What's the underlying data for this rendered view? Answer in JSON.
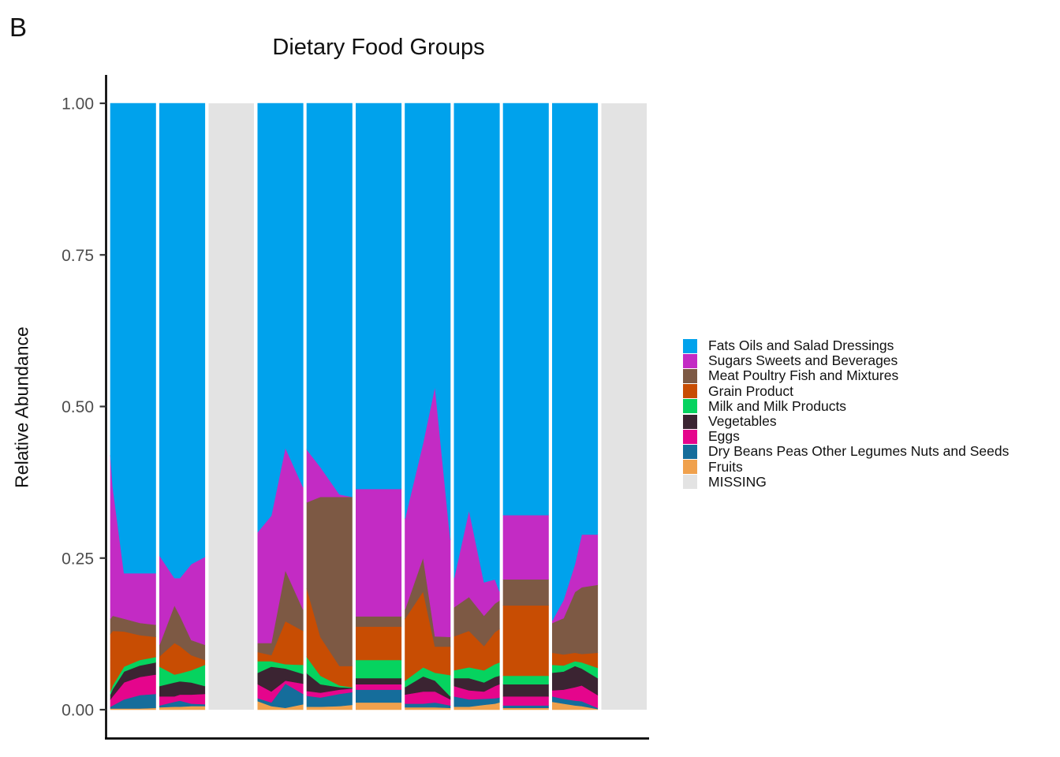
{
  "panel_tag": "B",
  "chart_data": {
    "type": "area",
    "title": "Dietary Food Groups",
    "y_axis": {
      "label": "Relative Abundance",
      "ticks": [
        {
          "label": "0.00",
          "value": 0.0
        },
        {
          "label": "0.25",
          "value": 0.25
        },
        {
          "label": "0.50",
          "value": 0.5
        },
        {
          "label": "0.75",
          "value": 0.75
        },
        {
          "label": "1.00",
          "value": 1.0
        }
      ],
      "range": [
        0,
        1
      ]
    },
    "x_axis": {
      "label": "",
      "ticks": []
    },
    "legend": [
      {
        "label": "Fats Oils and Salad Dressings",
        "color": "#00A2EC"
      },
      {
        "label": "Sugars Sweets and Beverages",
        "color": "#C32BC4"
      },
      {
        "label": "Meat Poultry Fish and Mixtures",
        "color": "#7D5944"
      },
      {
        "label": "Grain Product",
        "color": "#C84D03"
      },
      {
        "label": "Milk and Milk Products",
        "color": "#06D35F"
      },
      {
        "label": "Vegetables",
        "color": "#3B2432"
      },
      {
        "label": "Eggs",
        "color": "#E5058C"
      },
      {
        "label": "Dry Beans Peas Other Legumes Nuts and Seeds",
        "color": "#156D9B"
      },
      {
        "label": "Fruits",
        "color": "#F0A14D"
      },
      {
        "label": "MISSING",
        "color": "#E3E3E3"
      }
    ],
    "missing_color": "#E3E3E3",
    "stack_series": [
      "Fruits",
      "Dry Beans Peas Other Legumes Nuts and Seeds",
      "Eggs",
      "Vegetables",
      "Milk and Milk Products",
      "Grain Product",
      "Meat Poultry Fish and Mixtures",
      "Sugars Sweets and Beverages",
      "Fats Oils and Salad Dressings"
    ],
    "panels": [
      {
        "id": 1,
        "missing": false,
        "points": [
          {
            "x": 0.0,
            "v": [
              0.002,
              0.003,
              0.012,
              0.008,
              0.005,
              0.095,
              0.025,
              0.27,
              0.58
            ]
          },
          {
            "x": 0.05,
            "v": [
              0.002,
              0.005,
              0.015,
              0.012,
              0.006,
              0.09,
              0.025,
              0.213,
              0.632
            ]
          },
          {
            "x": 0.3,
            "v": [
              0.002,
              0.015,
              0.028,
              0.018,
              0.008,
              0.058,
              0.021,
              0.075,
              0.775
            ]
          },
          {
            "x": 0.65,
            "v": [
              0.002,
              0.022,
              0.03,
              0.019,
              0.009,
              0.041,
              0.02,
              0.082,
              0.775
            ]
          },
          {
            "x": 1.0,
            "v": [
              0.003,
              0.023,
              0.032,
              0.02,
              0.009,
              0.033,
              0.02,
              0.085,
              0.775
            ]
          }
        ]
      },
      {
        "id": 2,
        "missing": false,
        "points": [
          {
            "x": 0.0,
            "v": [
              0.004,
              0.003,
              0.015,
              0.017,
              0.032,
              0.017,
              0.019,
              0.147,
              0.746
            ]
          },
          {
            "x": 0.33,
            "v": [
              0.005,
              0.008,
              0.009,
              0.023,
              0.013,
              0.052,
              0.062,
              0.045,
              0.783
            ]
          },
          {
            "x": 0.45,
            "v": [
              0.005,
              0.01,
              0.01,
              0.022,
              0.013,
              0.045,
              0.05,
              0.062,
              0.783
            ]
          },
          {
            "x": 0.7,
            "v": [
              0.006,
              0.004,
              0.015,
              0.02,
              0.02,
              0.025,
              0.025,
              0.125,
              0.76
            ]
          },
          {
            "x": 1.0,
            "v": [
              0.006,
              0.003,
              0.017,
              0.013,
              0.035,
              0.008,
              0.025,
              0.145,
              0.748
            ]
          }
        ]
      },
      {
        "id": 3,
        "missing": true,
        "points": []
      },
      {
        "id": 4,
        "missing": false,
        "points": [
          {
            "x": 0.0,
            "v": [
              0.014,
              0.005,
              0.023,
              0.019,
              0.019,
              0.015,
              0.015,
              0.183,
              0.707
            ]
          },
          {
            "x": 0.3,
            "v": [
              0.006,
              0.006,
              0.018,
              0.041,
              0.009,
              0.01,
              0.02,
              0.21,
              0.68
            ]
          },
          {
            "x": 0.61,
            "v": [
              0.003,
              0.04,
              0.005,
              0.02,
              0.007,
              0.071,
              0.084,
              0.202,
              0.568
            ]
          },
          {
            "x": 1.0,
            "v": [
              0.009,
              0.017,
              0.017,
              0.016,
              0.015,
              0.056,
              0.035,
              0.202,
              0.633
            ]
          }
        ]
      },
      {
        "id": 5,
        "missing": false,
        "points": [
          {
            "x": 0.0,
            "v": [
              0.005,
              0.018,
              0.008,
              0.029,
              0.027,
              0.113,
              0.142,
              0.087,
              0.571
            ]
          },
          {
            "x": 0.3,
            "v": [
              0.005,
              0.015,
              0.008,
              0.014,
              0.014,
              0.064,
              0.231,
              0.049,
              0.6
            ]
          },
          {
            "x": 0.72,
            "v": [
              0.006,
              0.02,
              0.007,
              0.004,
              0.003,
              0.032,
              0.279,
              0.004,
              0.645
            ]
          },
          {
            "x": 1.0,
            "v": [
              0.008,
              0.021,
              0.006,
              0.001,
              0.001,
              0.035,
              0.279,
              0.0,
              0.649
            ]
          }
        ]
      },
      {
        "id": 6,
        "missing": false,
        "points": [
          {
            "x": 0.0,
            "v": [
              0.012,
              0.021,
              0.009,
              0.01,
              0.03,
              0.055,
              0.017,
              0.21,
              0.636
            ]
          },
          {
            "x": 1.0,
            "v": [
              0.012,
              0.021,
              0.009,
              0.01,
              0.03,
              0.055,
              0.017,
              0.21,
              0.636
            ]
          }
        ]
      },
      {
        "id": 7,
        "missing": false,
        "points": [
          {
            "x": 0.0,
            "v": [
              0.004,
              0.006,
              0.015,
              0.012,
              0.011,
              0.102,
              0.015,
              0.15,
              0.685
            ]
          },
          {
            "x": 0.4,
            "v": [
              0.004,
              0.006,
              0.02,
              0.025,
              0.015,
              0.125,
              0.056,
              0.189,
              0.56
            ]
          },
          {
            "x": 0.66,
            "v": [
              0.004,
              0.008,
              0.018,
              0.018,
              0.013,
              0.043,
              0.017,
              0.412,
              0.467
            ]
          },
          {
            "x": 1.0,
            "v": [
              0.003,
              0.004,
              0.01,
              0.005,
              0.035,
              0.047,
              0.016,
              0.16,
              0.72
            ]
          }
        ]
      },
      {
        "id": 8,
        "missing": false,
        "points": [
          {
            "x": 0.0,
            "v": [
              0.005,
              0.017,
              0.017,
              0.013,
              0.013,
              0.056,
              0.048,
              0.048,
              0.783
            ]
          },
          {
            "x": 0.33,
            "v": [
              0.005,
              0.012,
              0.015,
              0.02,
              0.018,
              0.06,
              0.056,
              0.143,
              0.671
            ]
          },
          {
            "x": 0.66,
            "v": [
              0.008,
              0.01,
              0.012,
              0.015,
              0.02,
              0.04,
              0.05,
              0.055,
              0.79
            ]
          },
          {
            "x": 0.9,
            "v": [
              0.01,
              0.009,
              0.02,
              0.015,
              0.021,
              0.053,
              0.047,
              0.04,
              0.785
            ]
          },
          {
            "x": 1.0,
            "v": [
              0.012,
              0.008,
              0.022,
              0.014,
              0.022,
              0.055,
              0.047,
              0.015,
              0.805
            ]
          }
        ]
      },
      {
        "id": 9,
        "missing": false,
        "points": [
          {
            "x": 0.0,
            "v": [
              0.003,
              0.004,
              0.015,
              0.02,
              0.014,
              0.116,
              0.043,
              0.106,
              0.679
            ]
          },
          {
            "x": 1.0,
            "v": [
              0.003,
              0.004,
              0.015,
              0.02,
              0.014,
              0.116,
              0.043,
              0.106,
              0.679
            ]
          }
        ]
      },
      {
        "id": 10,
        "missing": false,
        "points": [
          {
            "x": 0.0,
            "v": [
              0.013,
              0.009,
              0.01,
              0.029,
              0.013,
              0.02,
              0.049,
              0.004,
              0.853
            ]
          },
          {
            "x": 0.25,
            "v": [
              0.01,
              0.008,
              0.015,
              0.03,
              0.01,
              0.018,
              0.06,
              0.03,
              0.819
            ]
          },
          {
            "x": 0.5,
            "v": [
              0.007,
              0.008,
              0.022,
              0.035,
              0.008,
              0.014,
              0.1,
              0.046,
              0.76
            ]
          },
          {
            "x": 0.65,
            "v": [
              0.006,
              0.008,
              0.026,
              0.028,
              0.01,
              0.014,
              0.11,
              0.087,
              0.711
            ]
          },
          {
            "x": 1.0,
            "v": [
              0.001,
              0.002,
              0.021,
              0.028,
              0.017,
              0.025,
              0.112,
              0.083,
              0.711
            ]
          }
        ]
      },
      {
        "id": 11,
        "missing": true,
        "points": []
      }
    ]
  }
}
